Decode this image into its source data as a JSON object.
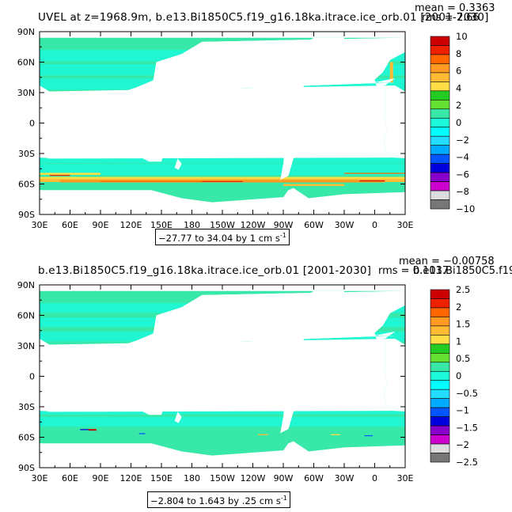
{
  "colors": {
    "ocean_base": "#38e8a8",
    "ocean_light": "#1cf8d8",
    "land": "#ffffff",
    "frame": "#000000"
  },
  "panels": [
    {
      "title": "UVEL at z=1968.9m, b.e13.Bi1850C5.f19_g16.18ka.itrace.ice_orb.01 [2001-2030]",
      "mean": "mean = 0.3363",
      "rms": "rms = 7.66",
      "range_label": "−27.77 to 34.04 by 1 cm s",
      "range_sup": "-1",
      "x_ticks": [
        "30E",
        "60E",
        "90E",
        "120E",
        "150E",
        "180",
        "150W",
        "120W",
        "90W",
        "60W",
        "30W",
        "0",
        "30E"
      ],
      "y_ticks": [
        "90N",
        "60N",
        "30N",
        "0",
        "30S",
        "60S",
        "90S"
      ],
      "colorbar_labels": [
        "10",
        "8",
        "6",
        "4",
        "2",
        "0",
        "−2",
        "−4",
        "−6",
        "−8",
        "−10"
      ],
      "colorbar_colors": [
        "#cc0000",
        "#ee2200",
        "#ff6600",
        "#ff9922",
        "#ffbb33",
        "#ffdd44",
        "#22cc22",
        "#66e033",
        "#38e8a8",
        "#1cf8d8",
        "#00ffff",
        "#22ddff",
        "#00aaff",
        "#0055ff",
        "#0000dd",
        "#8800cc",
        "#cc00cc",
        "#dddddd",
        "#777777"
      ]
    },
    {
      "title": "b.e13.Bi1850C5.f19_g16.18ka.itrace.ice_orb.01 [2001-2030]",
      "mean": "mean = −0.00758",
      "rms": "rms = 0.1017",
      "right_overlap": "b.e13.Bi1850C5.f19",
      "range_label": "−2.804 to 1.643 by .25 cm s",
      "range_sup": "-1",
      "x_ticks": [
        "30E",
        "60E",
        "90E",
        "120E",
        "150E",
        "180",
        "150W",
        "120W",
        "90W",
        "60W",
        "30W",
        "0",
        "30E"
      ],
      "y_ticks": [
        "90N",
        "60N",
        "30N",
        "0",
        "30S",
        "60S",
        "90S"
      ],
      "colorbar_labels": [
        "2.5",
        "2",
        "1.5",
        "1",
        "0.5",
        "0",
        "−0.5",
        "−1",
        "−1.5",
        "−2",
        "−2.5"
      ],
      "colorbar_colors": [
        "#cc0000",
        "#ee2200",
        "#ff6600",
        "#ff9922",
        "#ffbb33",
        "#ffdd44",
        "#22cc22",
        "#66e033",
        "#38e8a8",
        "#1cf8d8",
        "#00ffff",
        "#22ddff",
        "#00aaff",
        "#0055ff",
        "#0000dd",
        "#8800cc",
        "#cc00cc",
        "#dddddd",
        "#777777"
      ]
    }
  ],
  "chart_data": [
    {
      "type": "heatmap",
      "title": "UVEL at z=1968.9m, b.e13.Bi1850C5.f19_g16.18ka.itrace.ice_orb.01 [2001-2030]",
      "variable": "UVEL",
      "units": "cm s-1",
      "xlim": [
        "30E",
        "30E"
      ],
      "ylim": [
        "90S",
        "90N"
      ],
      "mean": 0.3363,
      "rms": 7.66,
      "min": -27.77,
      "max": 34.04,
      "contour_interval": 1,
      "colorbar": [
        -10,
        -8,
        -6,
        -4,
        -2,
        0,
        2,
        4,
        6,
        8,
        10
      ]
    },
    {
      "type": "heatmap",
      "title": "b.e13.Bi1850C5.f19_g16.18ka.itrace.ice_orb.01 [2001-2030]",
      "units": "cm s-1",
      "xlim": [
        "30E",
        "30E"
      ],
      "ylim": [
        "90S",
        "90N"
      ],
      "mean": -0.00758,
      "rms": 0.1017,
      "min": -2.804,
      "max": 1.643,
      "contour_interval": 0.25,
      "colorbar": [
        -2.5,
        -2,
        -1.5,
        -1,
        -0.5,
        0,
        0.5,
        1,
        1.5,
        2,
        2.5
      ]
    }
  ]
}
